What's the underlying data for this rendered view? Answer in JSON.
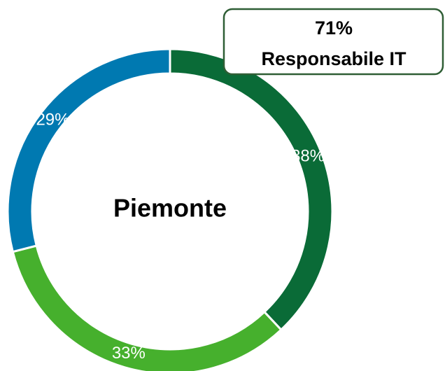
{
  "chart_data": {
    "type": "donut",
    "values": [
      38,
      33,
      29
    ],
    "value_labels": [
      "38%",
      "33%",
      "29%"
    ],
    "colors": [
      "#0a6b37",
      "#46b02d",
      "#0079b1"
    ],
    "center_label": "Piemonte",
    "annotation": {
      "value": "71%",
      "text": "Responsabile IT"
    }
  }
}
